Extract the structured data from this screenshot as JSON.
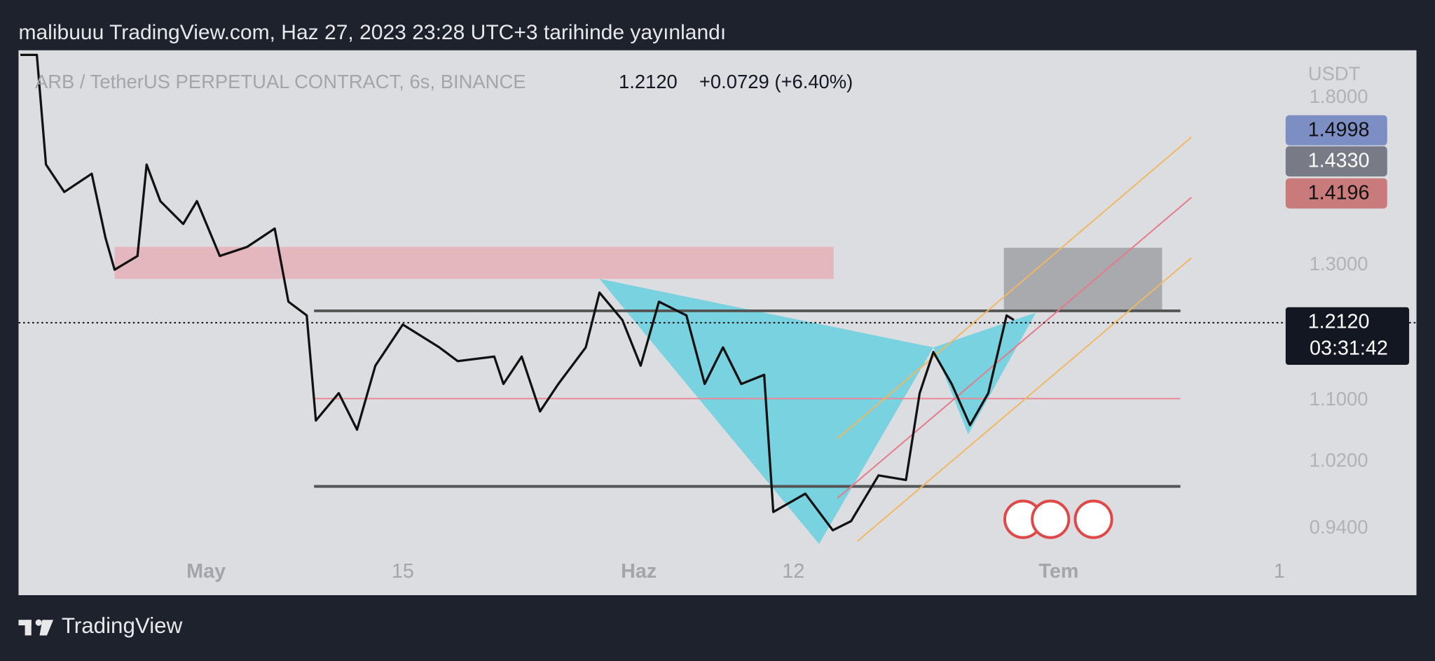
{
  "header": {
    "title": "malibuuu TradingView.com, Haz 27, 2023 23:28 UTC+3 tarihinde yayınlandı"
  },
  "symbol": {
    "name": "ARB / TetherUS PERPETUAL CONTRACT, 6s, BINANCE",
    "price": "1.2120",
    "change": "+0.0729 (+6.40%)"
  },
  "price_axis": {
    "unit": "USDT",
    "labels": [
      "1.8000",
      "1.3000",
      "1.1000",
      "1.0200",
      "0.9400"
    ]
  },
  "badges": [
    "1.4998",
    "1.4330",
    "1.4196"
  ],
  "last_price": {
    "price": "1.2120",
    "countdown": "03:31:42"
  },
  "time_axis": {
    "labels": [
      "May",
      "15",
      "Haz",
      "12",
      "Tem",
      "1"
    ]
  },
  "footer": {
    "brand": "TradingView"
  }
}
